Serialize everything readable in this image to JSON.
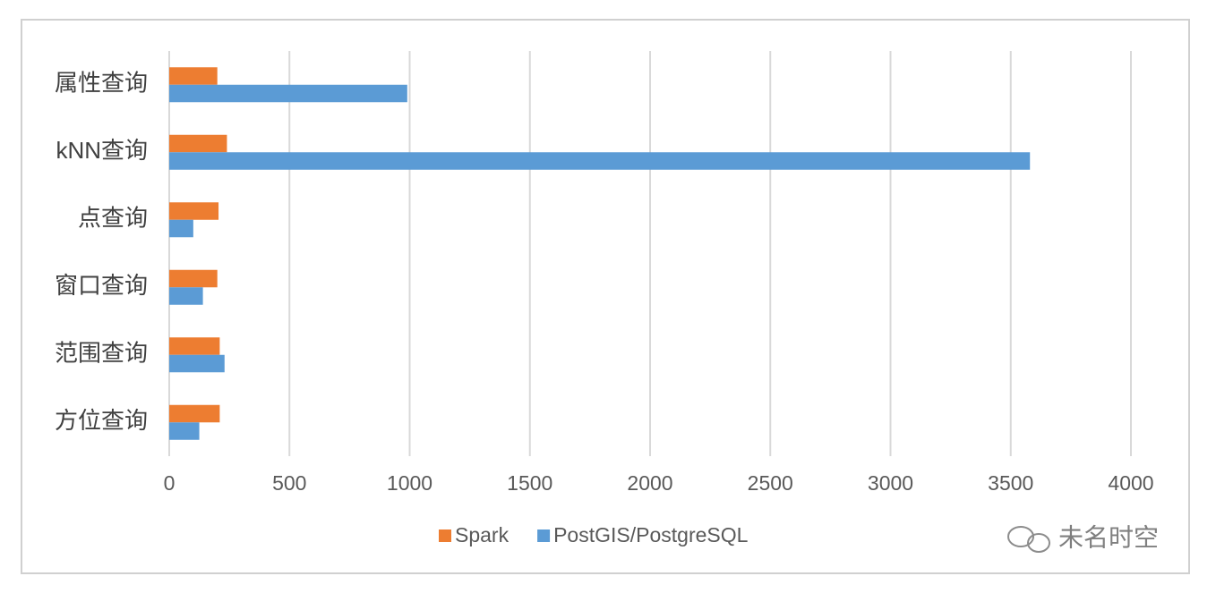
{
  "chart_data": {
    "type": "barh",
    "categories": [
      "属性查询",
      "kNN查询",
      "点查询",
      "窗口查询",
      "范围查询",
      "方位查询"
    ],
    "series": [
      {
        "name": "Spark",
        "color": "#ed7d31",
        "values": [
          200,
          240,
          205,
          200,
          210,
          210
        ]
      },
      {
        "name": "PostGIS/PostgreSQL",
        "color": "#5b9bd5",
        "values": [
          990,
          3580,
          100,
          140,
          230,
          125
        ]
      }
    ],
    "xlim": [
      0,
      4000
    ],
    "xticks": [
      0,
      500,
      1000,
      1500,
      2000,
      2500,
      3000,
      3500,
      4000
    ],
    "grid": true,
    "legend": "bottom",
    "watermark": "未名时空"
  }
}
